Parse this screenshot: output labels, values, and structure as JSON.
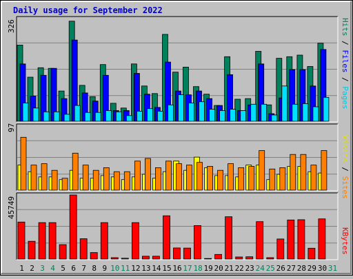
{
  "chart_data": [
    {
      "type": "bar",
      "title": "Daily usage for September 2022",
      "panel": "hits-files-pages",
      "ymax_label": "326",
      "ylim": [
        0,
        326
      ],
      "categories": [
        "1",
        "2",
        "3",
        "4",
        "5",
        "6",
        "7",
        "8",
        "9",
        "10",
        "11",
        "12",
        "13",
        "14",
        "15",
        "16",
        "17",
        "18",
        "19",
        "20",
        "21",
        "22",
        "23",
        "24",
        "25",
        "26",
        "27",
        "28",
        "29",
        "30",
        "31"
      ],
      "weekend_days": [
        "3",
        "4",
        "10",
        "11",
        "17",
        "18",
        "24",
        "25",
        "31"
      ],
      "legend": [
        "Pages",
        "Files",
        "Hits"
      ],
      "series": [
        {
          "name": "Hits",
          "color": "#00805c",
          "values": [
            242,
            140,
            170,
            168,
            96,
            318,
            114,
            78,
            180,
            57,
            42,
            182,
            112,
            88,
            276,
            156,
            172,
            110,
            86,
            50,
            205,
            70,
            72,
            222,
            52,
            200,
            205,
            210,
            174,
            248,
            0
          ]
        },
        {
          "name": "Files",
          "color": "#0000ff",
          "values": [
            182,
            80,
            146,
            168,
            72,
            258,
            90,
            64,
            146,
            34,
            34,
            152,
            86,
            44,
            188,
            96,
            84,
            96,
            72,
            50,
            148,
            34,
            52,
            182,
            24,
            74,
            164,
            164,
            112,
            228,
            0
          ]
        },
        {
          "name": "Pages",
          "color": "#00e0ff",
          "values": [
            58,
            42,
            30,
            30,
            22,
            50,
            28,
            28,
            34,
            30,
            18,
            32,
            40,
            32,
            52,
            84,
            58,
            62,
            38,
            34,
            38,
            34,
            54,
            54,
            20,
            112,
            54,
            56,
            46,
            76,
            0
          ]
        }
      ]
    },
    {
      "type": "bar",
      "panel": "visits-sites",
      "ymax_label": "97",
      "ylim": [
        0,
        97
      ],
      "legend": [
        "Sites",
        "Visits"
      ],
      "series": [
        {
          "name": "Visits",
          "color": "#ffff00",
          "values": [
            38,
            28,
            20,
            20,
            16,
            30,
            18,
            18,
            22,
            20,
            16,
            20,
            24,
            18,
            28,
            44,
            30,
            50,
            34,
            22,
            22,
            20,
            38,
            38,
            16,
            24,
            36,
            36,
            28,
            26,
            0
          ]
        },
        {
          "name": "Sites",
          "color": "#ff8000",
          "values": [
            80,
            38,
            40,
            30,
            18,
            56,
            38,
            30,
            34,
            28,
            28,
            44,
            48,
            34,
            44,
            40,
            38,
            42,
            36,
            30,
            40,
            34,
            36,
            60,
            32,
            34,
            54,
            54,
            38,
            60,
            0
          ]
        }
      ]
    },
    {
      "type": "bar",
      "panel": "kbytes",
      "ymax_label": "45749",
      "ylim": [
        0,
        45749
      ],
      "legend": [
        "KBytes"
      ],
      "series": [
        {
          "name": "KBytes",
          "color": "#ff0000",
          "values": [
            26400,
            12700,
            26000,
            26000,
            10300,
            45749,
            14500,
            4600,
            26000,
            1000,
            600,
            26000,
            2000,
            2000,
            30900,
            7900,
            7800,
            23900,
            400,
            3300,
            30200,
            1500,
            1600,
            26700,
            1000,
            14300,
            27900,
            28100,
            7700,
            28700,
            0
          ]
        }
      ]
    }
  ]
}
